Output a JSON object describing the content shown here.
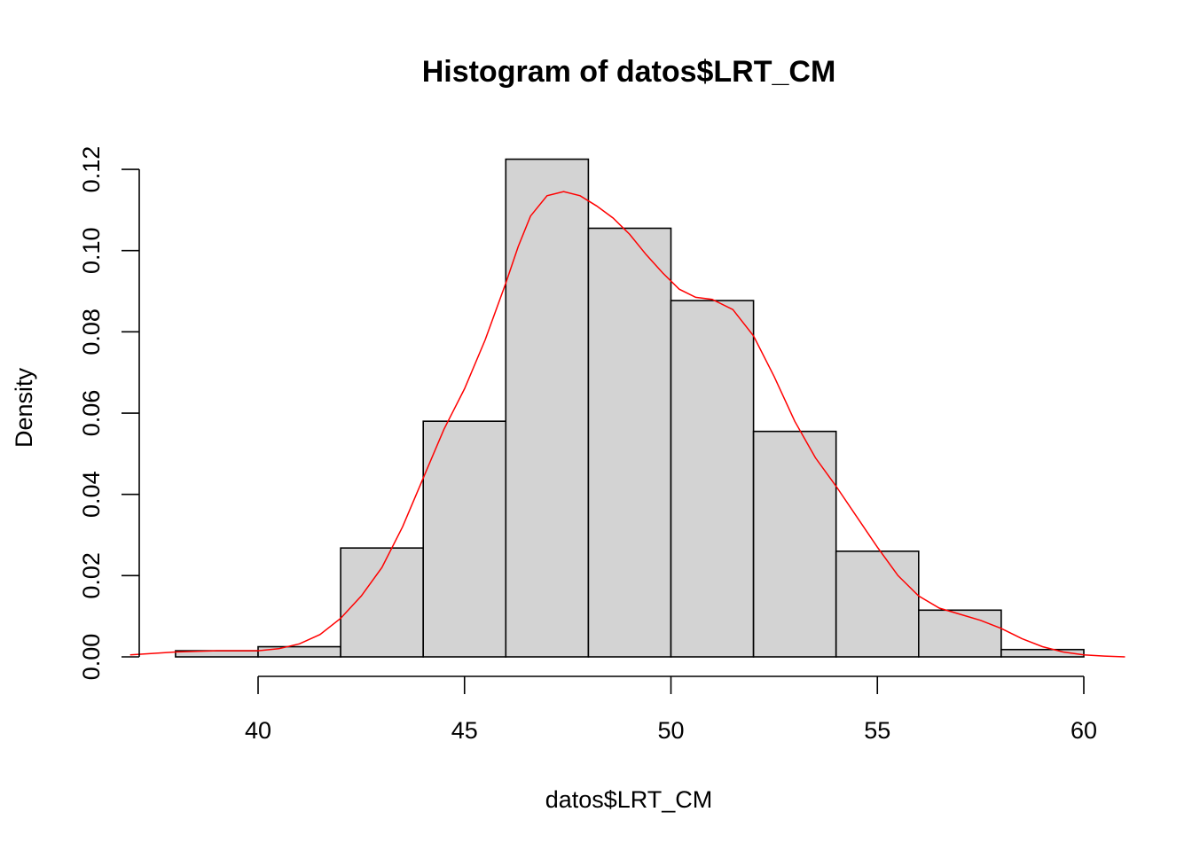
{
  "chart_data": {
    "type": "bar",
    "title": "Histogram of datos$LRT_CM",
    "xlabel": "datos$LRT_CM",
    "ylabel": "Density",
    "xlim": [
      37,
      61
    ],
    "ylim": [
      0,
      0.12
    ],
    "x_ticks": [
      40,
      45,
      50,
      55,
      60
    ],
    "x_tick_labels": [
      "40",
      "45",
      "50",
      "55",
      "60"
    ],
    "y_ticks": [
      0,
      0.02,
      0.04,
      0.06,
      0.08,
      0.1,
      0.12
    ],
    "y_tick_labels": [
      "0.00",
      "0.02",
      "0.04",
      "0.06",
      "0.08",
      "0.10",
      "0.12"
    ],
    "bin_edges": [
      38,
      40,
      42,
      44,
      46,
      48,
      50,
      52,
      54,
      56,
      58,
      60
    ],
    "values": [
      0.0015,
      0.0025,
      0.0268,
      0.058,
      0.1225,
      0.1055,
      0.0877,
      0.0555,
      0.026,
      0.0115,
      0.0018
    ],
    "bar_fill": "#d3d3d3",
    "bar_stroke": "#000000",
    "grid": false,
    "density_curve": {
      "color": "#ff0000",
      "x": [
        36.9,
        38.0,
        39.0,
        40.0,
        40.5,
        41.0,
        41.5,
        42.0,
        42.5,
        43.0,
        43.5,
        44.0,
        44.5,
        45.0,
        45.5,
        46.0,
        46.3,
        46.6,
        47.0,
        47.4,
        47.8,
        48.2,
        48.6,
        49.0,
        49.4,
        49.8,
        50.2,
        50.6,
        51.0,
        51.5,
        52.0,
        52.5,
        53.0,
        53.5,
        54.0,
        54.5,
        55.0,
        55.5,
        56.0,
        56.5,
        57.0,
        57.5,
        58.0,
        58.5,
        59.0,
        59.5,
        60.0,
        60.5,
        61.0
      ],
      "y": [
        0.0005,
        0.0012,
        0.0015,
        0.0015,
        0.002,
        0.0032,
        0.0055,
        0.0095,
        0.015,
        0.022,
        0.032,
        0.044,
        0.056,
        0.066,
        0.078,
        0.092,
        0.101,
        0.1085,
        0.1135,
        0.1145,
        0.1135,
        0.111,
        0.108,
        0.104,
        0.099,
        0.0945,
        0.0905,
        0.0885,
        0.088,
        0.0855,
        0.079,
        0.069,
        0.058,
        0.049,
        0.042,
        0.0345,
        0.027,
        0.02,
        0.015,
        0.012,
        0.0105,
        0.009,
        0.007,
        0.0045,
        0.0025,
        0.0012,
        0.0005,
        0.0002,
        0.0
      ]
    }
  }
}
